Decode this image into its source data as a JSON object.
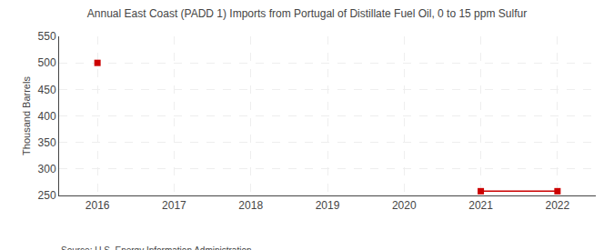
{
  "chart_data": {
    "type": "line",
    "title": "Annual East Coast (PADD 1) Imports from Portugal of Distillate Fuel Oil, 0 to 15 ppm Sulfur",
    "ylabel": "Thousand Barrels",
    "annotations": [
      "Source: U.S. Energy Information Administration"
    ],
    "x": [
      2016,
      2017,
      2018,
      2019,
      2020,
      2021,
      2022
    ],
    "values": [
      500,
      null,
      null,
      null,
      null,
      258,
      258
    ],
    "color": "#cc0000",
    "marker": "square",
    "xlim": [
      2015.5,
      2022.5
    ],
    "xticks": [
      2016,
      2017,
      2018,
      2019,
      2020,
      2021,
      2022
    ],
    "ylim": [
      250,
      550
    ],
    "yticks": [
      250,
      300,
      350,
      400,
      450,
      500,
      550
    ],
    "grid": true
  }
}
